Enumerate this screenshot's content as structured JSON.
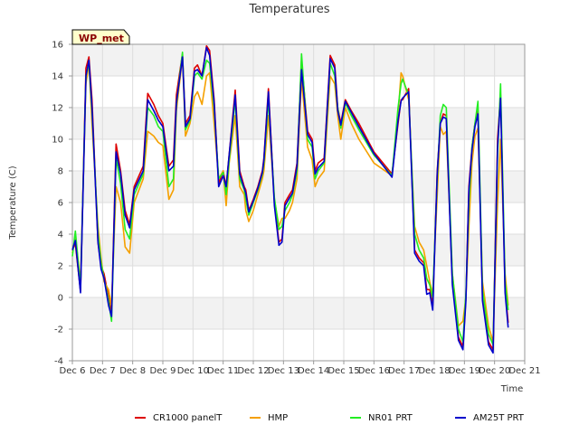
{
  "chart_data": {
    "type": "line",
    "title": "Temperatures",
    "xlabel": "Time",
    "ylabel": "Temperature (C)",
    "badge": "WP_met",
    "xlim": [
      6,
      21
    ],
    "ylim": [
      -4,
      16
    ],
    "x_ticks": [
      6,
      7,
      8,
      9,
      10,
      11,
      12,
      13,
      14,
      15,
      16,
      17,
      18,
      19,
      20,
      21
    ],
    "x_tick_labels": [
      "Dec 6",
      "Dec 7",
      "Dec 8",
      "Dec 9",
      "Dec 10",
      "Dec 11",
      "Dec 12",
      "Dec 13",
      "Dec 14",
      "Dec 15",
      "Dec 16",
      "Dec 17",
      "Dec 18",
      "Dec 19",
      "Dec 20",
      "Dec 21"
    ],
    "y_ticks": [
      -4,
      -2,
      0,
      2,
      4,
      6,
      8,
      10,
      12,
      14,
      16
    ],
    "colors": {
      "grid": "#dddddd",
      "band": "#f2f2f2",
      "axis": "#999999"
    },
    "series": [
      {
        "name": "CR1000 panelT",
        "color": "#dd0000",
        "x": [
          6.0,
          6.1,
          6.27,
          6.45,
          6.55,
          6.65,
          6.85,
          6.95,
          7.05,
          7.2,
          7.3,
          7.45,
          7.6,
          7.75,
          7.9,
          8.05,
          8.35,
          8.5,
          8.7,
          8.85,
          9.0,
          9.2,
          9.35,
          9.45,
          9.65,
          9.75,
          9.9,
          10.05,
          10.15,
          10.3,
          10.45,
          10.55,
          10.7,
          10.85,
          11.0,
          11.1,
          11.2,
          11.4,
          11.55,
          11.7,
          11.75,
          11.85,
          12.0,
          12.15,
          12.3,
          12.35,
          12.5,
          12.7,
          12.85,
          12.95,
          13.05,
          13.2,
          13.3,
          13.45,
          13.6,
          13.8,
          13.95,
          14.05,
          14.15,
          14.35,
          14.55,
          14.7,
          14.8,
          14.9,
          15.05,
          15.25,
          15.5,
          16.0,
          16.6,
          16.8,
          16.9,
          16.95,
          17.15,
          17.35,
          17.5,
          17.65,
          17.75,
          17.85,
          17.95,
          18.1,
          18.2,
          18.3,
          18.4,
          18.6,
          18.8,
          18.95,
          19.05,
          19.15,
          19.25,
          19.35,
          19.45,
          19.6,
          19.8,
          19.95,
          20.1,
          20.2,
          20.35,
          20.45
        ],
        "y": [
          3.0,
          3.4,
          0.4,
          14.5,
          15.2,
          12.5,
          3.5,
          2.0,
          1.5,
          0.0,
          -1.0,
          9.7,
          8.0,
          5.5,
          4.6,
          7.0,
          8.3,
          12.9,
          12.2,
          11.5,
          11.0,
          8.3,
          8.7,
          12.8,
          15.4,
          11.0,
          11.5,
          14.5,
          14.7,
          14.0,
          15.9,
          15.6,
          12.5,
          7.2,
          8.0,
          7.0,
          9.0,
          13.1,
          8.0,
          7.0,
          6.8,
          5.5,
          6.2,
          7.0,
          8.0,
          8.8,
          13.2,
          6.0,
          3.5,
          3.7,
          6.0,
          6.5,
          6.8,
          8.5,
          15.0,
          10.5,
          10.0,
          8.0,
          8.5,
          8.8,
          15.3,
          14.7,
          12.0,
          11.0,
          12.5,
          11.8,
          11.0,
          9.2,
          7.8,
          11.0,
          12.5,
          12.5,
          13.2,
          3.0,
          2.5,
          2.2,
          0.5,
          0.5,
          -0.5,
          8.0,
          11.0,
          11.6,
          11.5,
          1.0,
          -2.5,
          -3.1,
          0.0,
          7.0,
          9.5,
          11.0,
          11.8,
          0.0,
          -2.8,
          -3.3,
          10.0,
          12.8,
          0.5,
          -1.6
        ]
      },
      {
        "name": "HMP",
        "color": "#f5a000",
        "x": [
          6.0,
          6.1,
          6.27,
          6.45,
          6.55,
          6.65,
          6.85,
          6.95,
          7.05,
          7.2,
          7.3,
          7.45,
          7.6,
          7.75,
          7.9,
          8.05,
          8.35,
          8.5,
          8.7,
          8.85,
          9.0,
          9.2,
          9.35,
          9.45,
          9.65,
          9.75,
          9.9,
          10.05,
          10.15,
          10.3,
          10.45,
          10.55,
          10.7,
          10.85,
          11.0,
          11.1,
          11.2,
          11.4,
          11.55,
          11.7,
          11.75,
          11.85,
          12.0,
          12.15,
          12.3,
          12.35,
          12.5,
          12.7,
          12.85,
          12.95,
          13.05,
          13.2,
          13.3,
          13.45,
          13.6,
          13.8,
          13.95,
          14.05,
          14.15,
          14.35,
          14.55,
          14.7,
          14.8,
          14.9,
          15.05,
          15.25,
          15.5,
          16.0,
          16.6,
          16.8,
          16.9,
          16.95,
          17.15,
          17.35,
          17.5,
          17.65,
          17.75,
          17.85,
          17.95,
          18.1,
          18.2,
          18.3,
          18.4,
          18.6,
          18.8,
          18.95,
          19.05,
          19.15,
          19.25,
          19.35,
          19.45,
          19.6,
          19.8,
          19.95,
          20.1,
          20.2,
          20.35,
          20.45
        ],
        "y": [
          2.8,
          3.8,
          1.0,
          13.5,
          14.8,
          11.0,
          4.5,
          2.5,
          1.0,
          0.5,
          -0.5,
          7.0,
          6.0,
          3.2,
          2.8,
          6.0,
          7.5,
          10.5,
          10.2,
          9.8,
          9.6,
          6.2,
          6.8,
          11.8,
          15.2,
          10.2,
          11.0,
          12.7,
          13.0,
          12.2,
          14.0,
          14.2,
          11.0,
          7.5,
          8.0,
          5.8,
          8.5,
          11.5,
          7.0,
          6.5,
          5.5,
          4.8,
          5.5,
          6.5,
          7.5,
          8.0,
          11.5,
          6.2,
          4.5,
          5.0,
          5.0,
          5.5,
          6.0,
          7.5,
          13.8,
          9.5,
          8.7,
          7.0,
          7.5,
          8.0,
          14.0,
          13.5,
          11.5,
          10.0,
          12.0,
          11.0,
          10.0,
          8.5,
          7.7,
          11.5,
          14.2,
          14.0,
          12.5,
          4.5,
          3.5,
          3.0,
          2.0,
          1.0,
          0.2,
          6.5,
          10.8,
          10.3,
          10.5,
          1.5,
          -1.8,
          -1.5,
          0.0,
          4.5,
          8.5,
          10.2,
          10.7,
          1.0,
          -1.8,
          -2.8,
          6.0,
          10.0,
          1.5,
          -0.5
        ]
      },
      {
        "name": "NR01 PRT",
        "color": "#22ee22",
        "x": [
          6.0,
          6.1,
          6.27,
          6.45,
          6.55,
          6.65,
          6.85,
          6.95,
          7.05,
          7.2,
          7.3,
          7.45,
          7.6,
          7.75,
          7.9,
          8.05,
          8.35,
          8.5,
          8.7,
          8.85,
          9.0,
          9.2,
          9.35,
          9.45,
          9.65,
          9.75,
          9.9,
          10.05,
          10.15,
          10.3,
          10.45,
          10.55,
          10.7,
          10.85,
          11.0,
          11.1,
          11.2,
          11.4,
          11.55,
          11.7,
          11.75,
          11.85,
          12.0,
          12.15,
          12.3,
          12.35,
          12.5,
          12.7,
          12.85,
          12.95,
          13.05,
          13.2,
          13.3,
          13.45,
          13.6,
          13.8,
          13.95,
          14.05,
          14.15,
          14.35,
          14.55,
          14.7,
          14.8,
          14.9,
          15.05,
          15.25,
          15.5,
          16.0,
          16.6,
          16.8,
          16.9,
          16.95,
          17.15,
          17.35,
          17.5,
          17.65,
          17.75,
          17.85,
          17.95,
          18.1,
          18.2,
          18.3,
          18.4,
          18.6,
          18.8,
          18.95,
          19.05,
          19.15,
          19.25,
          19.35,
          19.45,
          19.6,
          19.8,
          19.95,
          20.1,
          20.2,
          20.35,
          20.45
        ],
        "y": [
          2.6,
          4.2,
          0.6,
          14.0,
          14.8,
          11.8,
          4.0,
          2.2,
          1.2,
          -0.2,
          -1.5,
          8.8,
          7.2,
          4.3,
          3.7,
          6.5,
          7.8,
          12.0,
          11.5,
          10.8,
          10.5,
          7.0,
          7.5,
          12.2,
          15.5,
          10.6,
          11.2,
          14.0,
          14.2,
          13.8,
          15.0,
          14.8,
          12.0,
          7.5,
          7.9,
          6.5,
          8.7,
          12.5,
          7.5,
          6.8,
          6.2,
          5.2,
          6.0,
          6.8,
          7.8,
          8.5,
          12.5,
          6.3,
          4.3,
          4.5,
          5.5,
          6.0,
          6.5,
          8.0,
          15.4,
          10.0,
          9.5,
          7.5,
          8.0,
          8.5,
          14.8,
          14.0,
          12.0,
          10.7,
          12.3,
          11.5,
          10.6,
          9.0,
          7.7,
          12.0,
          13.5,
          13.8,
          12.8,
          4.0,
          3.0,
          2.5,
          1.2,
          0.8,
          0.0,
          7.5,
          11.5,
          12.2,
          12.0,
          1.5,
          -2.0,
          -2.8,
          0.3,
          6.0,
          9.5,
          11.0,
          12.4,
          0.5,
          -2.3,
          -3.0,
          9.0,
          13.5,
          1.0,
          -0.8
        ]
      },
      {
        "name": "AM25T PRT",
        "color": "#0000cc",
        "x": [
          6.0,
          6.1,
          6.27,
          6.45,
          6.55,
          6.65,
          6.85,
          6.95,
          7.05,
          7.2,
          7.3,
          7.45,
          7.6,
          7.75,
          7.9,
          8.05,
          8.35,
          8.5,
          8.7,
          8.85,
          9.0,
          9.2,
          9.35,
          9.45,
          9.65,
          9.75,
          9.9,
          10.05,
          10.15,
          10.3,
          10.45,
          10.55,
          10.7,
          10.85,
          11.0,
          11.1,
          11.2,
          11.4,
          11.55,
          11.7,
          11.75,
          11.85,
          12.0,
          12.15,
          12.3,
          12.35,
          12.5,
          12.7,
          12.85,
          12.95,
          13.05,
          13.2,
          13.3,
          13.45,
          13.6,
          13.8,
          13.95,
          14.05,
          14.15,
          14.35,
          14.55,
          14.7,
          14.8,
          14.9,
          15.05,
          15.25,
          15.5,
          16.0,
          16.6,
          16.8,
          16.9,
          16.95,
          17.15,
          17.35,
          17.5,
          17.65,
          17.75,
          17.85,
          17.95,
          18.1,
          18.2,
          18.3,
          18.4,
          18.6,
          18.8,
          18.95,
          19.05,
          19.15,
          19.25,
          19.35,
          19.45,
          19.6,
          19.8,
          19.95,
          20.1,
          20.2,
          20.35,
          20.45
        ],
        "y": [
          3.0,
          3.6,
          0.3,
          14.0,
          15.0,
          12.0,
          3.5,
          1.8,
          1.2,
          -0.5,
          -1.2,
          9.2,
          7.8,
          5.2,
          4.4,
          6.8,
          8.0,
          12.5,
          11.8,
          11.2,
          10.8,
          8.0,
          8.3,
          12.3,
          15.2,
          10.8,
          11.3,
          14.3,
          14.4,
          14.0,
          15.8,
          15.3,
          12.3,
          7.0,
          7.7,
          7.0,
          9.0,
          12.8,
          7.8,
          6.9,
          6.6,
          5.4,
          6.1,
          6.9,
          7.9,
          8.7,
          13.0,
          5.8,
          3.3,
          3.5,
          5.8,
          6.3,
          6.6,
          8.3,
          14.4,
          10.3,
          9.8,
          7.8,
          8.2,
          8.6,
          15.1,
          14.5,
          11.8,
          10.9,
          12.4,
          11.7,
          10.8,
          9.1,
          7.6,
          11.2,
          12.4,
          12.6,
          13.0,
          2.8,
          2.3,
          2.0,
          0.2,
          0.3,
          -0.8,
          7.8,
          11.0,
          11.4,
          11.3,
          0.8,
          -2.7,
          -3.3,
          -0.2,
          6.8,
          9.3,
          10.8,
          11.6,
          -0.2,
          -3.0,
          -3.5,
          9.5,
          12.6,
          0.3,
          -1.9
        ]
      }
    ]
  }
}
